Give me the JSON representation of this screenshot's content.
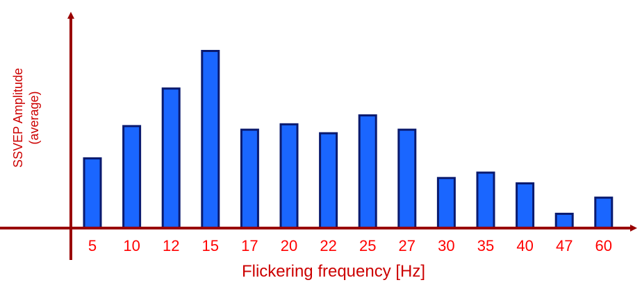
{
  "chart_data": {
    "type": "bar",
    "categories": [
      "5",
      "10",
      "12",
      "15",
      "17",
      "20",
      "22",
      "25",
      "27",
      "30",
      "35",
      "40",
      "47",
      "60"
    ],
    "values": [
      39,
      57,
      78,
      99,
      55,
      58,
      53,
      63,
      55,
      28,
      31,
      25,
      8,
      17
    ],
    "xlabel": "Flickering frequency [Hz]",
    "ylabel": "SSVEP Amplitude (average)",
    "ylabel_lines": [
      "SSVEP Amplitude",
      "(average)"
    ],
    "ylim": [
      0,
      112
    ],
    "y_ticks_shown": false,
    "grid": false,
    "legend": "none"
  },
  "colors": {
    "bar_fill": "#1a66ff",
    "bar_edge": "#0a1a6e",
    "axis": "#990000",
    "tick_label": "#ff0000",
    "axis_title": "#cc0000"
  }
}
